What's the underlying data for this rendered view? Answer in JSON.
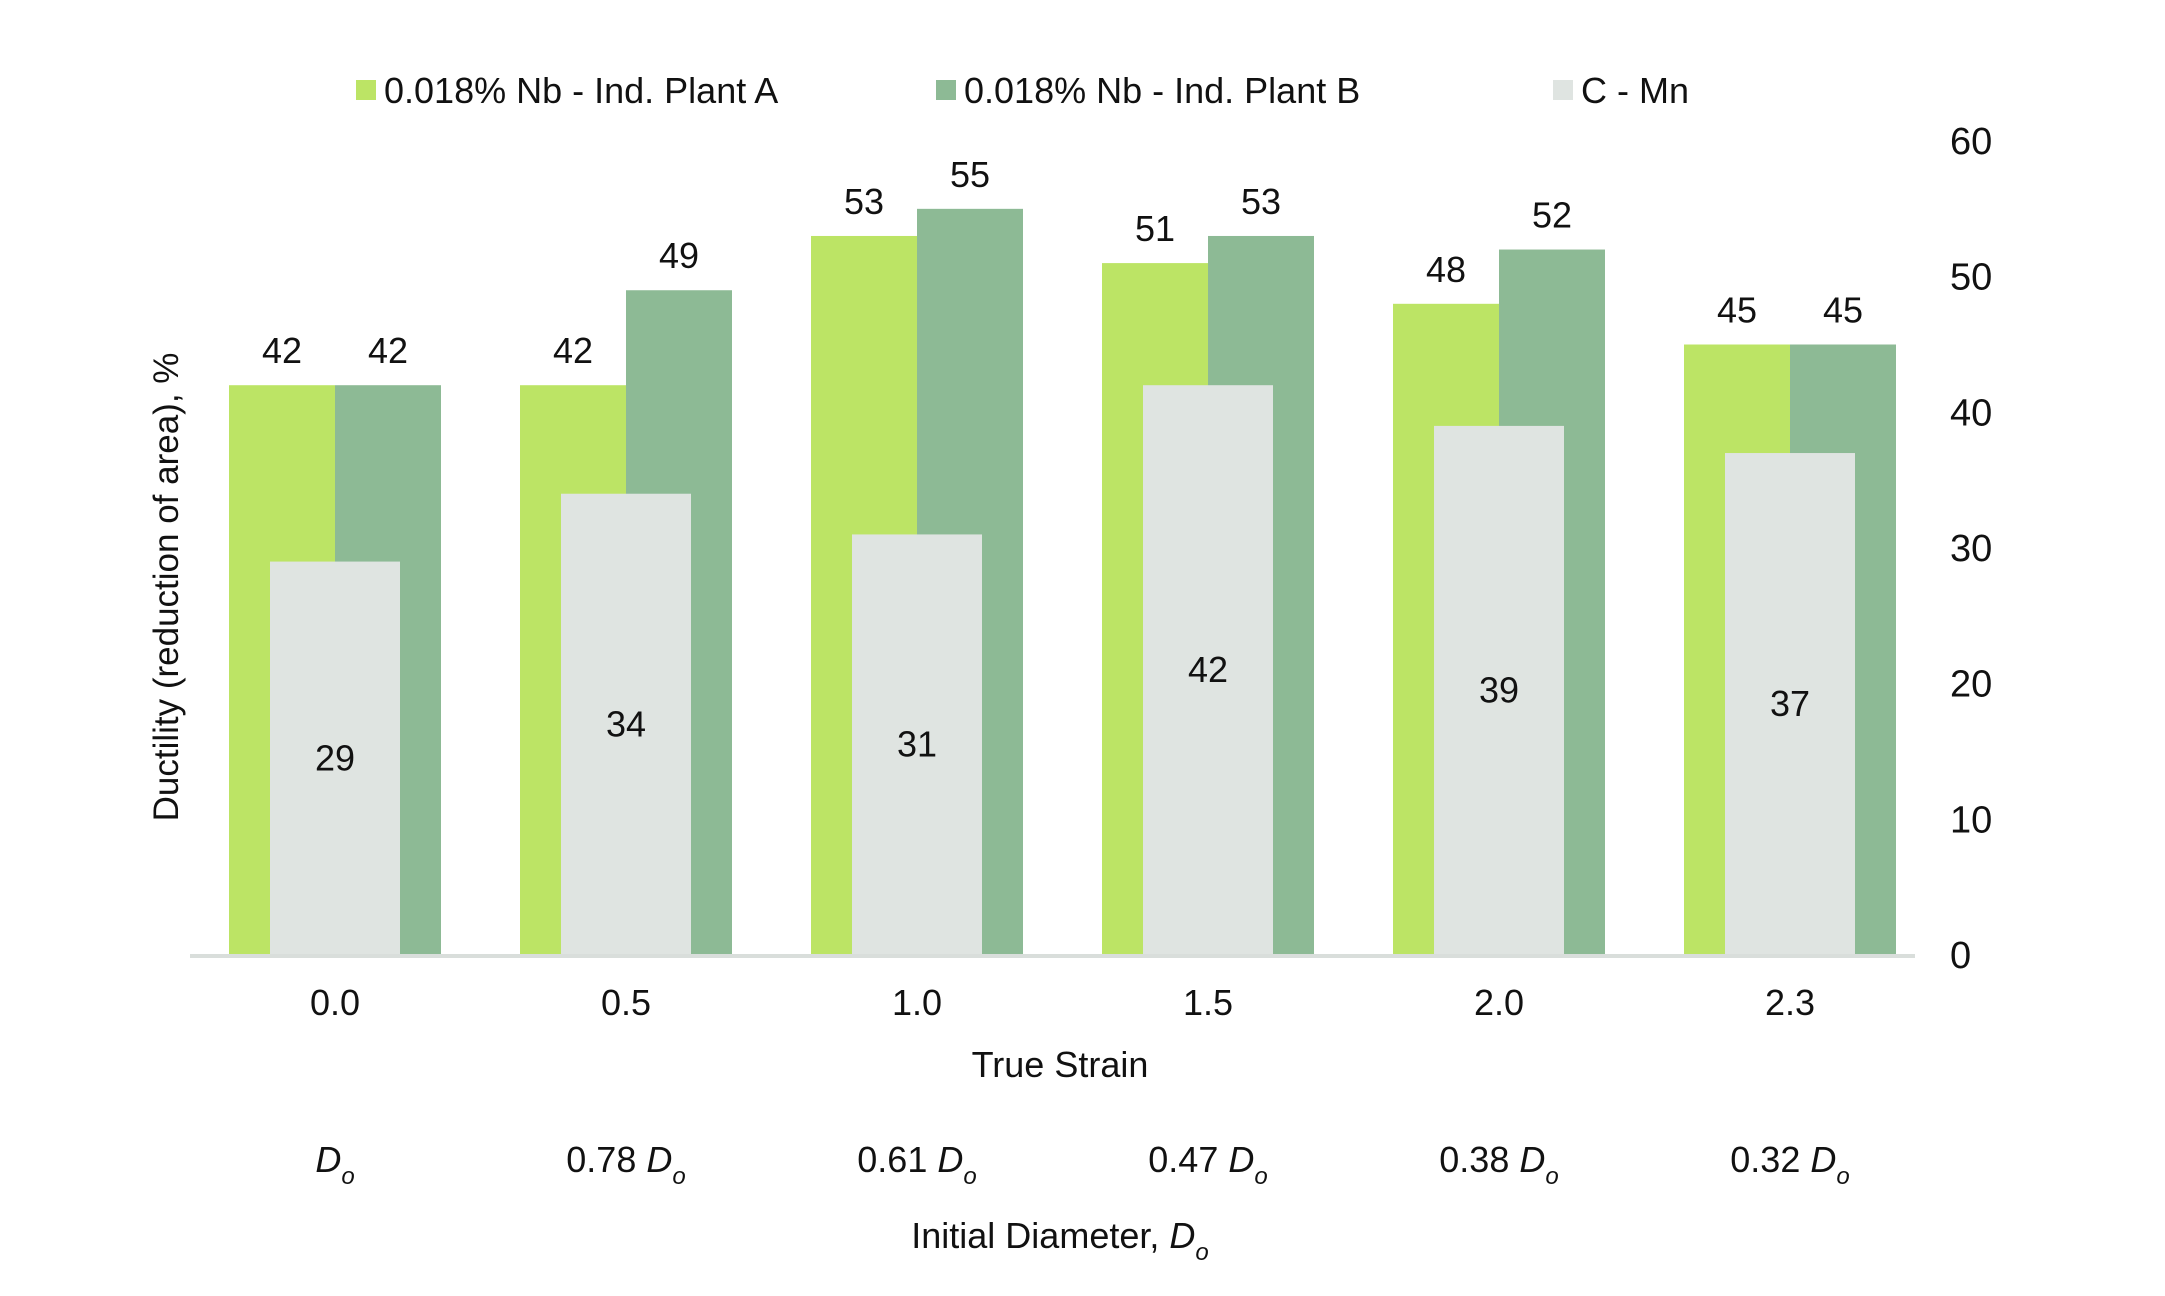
{
  "chart_data": {
    "type": "bar",
    "title": "",
    "categories": [
      "0.0",
      "0.5",
      "1.0",
      "1.5",
      "2.0",
      "2.3"
    ],
    "secondary_categories": [
      {
        "prefix": "",
        "symbol": "D",
        "sub": "o"
      },
      {
        "prefix": "0.78 ",
        "symbol": "D",
        "sub": "o"
      },
      {
        "prefix": "0.61 ",
        "symbol": "D",
        "sub": "o"
      },
      {
        "prefix": "0.47 ",
        "symbol": "D",
        "sub": "o"
      },
      {
        "prefix": "0.38 ",
        "symbol": "D",
        "sub": "o"
      },
      {
        "prefix": "0.32 ",
        "symbol": "D",
        "sub": "o"
      }
    ],
    "series": [
      {
        "name": "0.018% Nb - Ind. Plant A",
        "color": "#bce465",
        "values": [
          42,
          42,
          53,
          51,
          48,
          45
        ]
      },
      {
        "name": "0.018% Nb - Ind. Plant B",
        "color": "#8dba95",
        "values": [
          42,
          49,
          55,
          53,
          52,
          45
        ]
      },
      {
        "name": "C - Mn",
        "color": "#dfe4e1",
        "values": [
          29,
          34,
          31,
          42,
          39,
          37
        ]
      }
    ],
    "xlabel": "True Strain",
    "xlabel2": {
      "text": "Initial Diameter, ",
      "symbol": "D",
      "sub": "o"
    },
    "ylabel": "Ductility (reduction of area), %",
    "ylim": [
      0,
      60
    ],
    "yticks": [
      0,
      10,
      20,
      30,
      40,
      50,
      60
    ],
    "y_axis_side": "right",
    "grid": false,
    "legend_position": "top"
  }
}
